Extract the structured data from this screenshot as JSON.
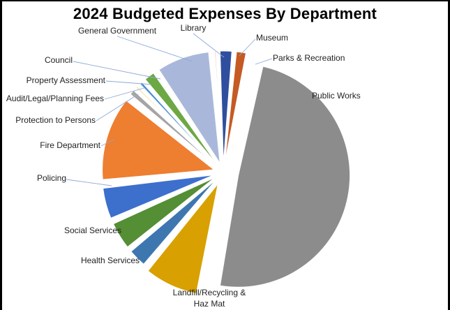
{
  "chart_data": {
    "type": "pie",
    "title": "2024 Budgeted Expenses By Department",
    "exploded": true,
    "slices": [
      {
        "label": "Library",
        "value": 0.6,
        "color": "#F4B9A0"
      },
      {
        "label": "Museum",
        "value": 2.0,
        "color": "#2F4F9E"
      },
      {
        "label": "Parks & Recreation",
        "value": 1.7,
        "color": "#C55A24"
      },
      {
        "label": "Public Works",
        "value": 45.5,
        "color": "#8C8C8C"
      },
      {
        "label": "Landfill/Recycling & Haz  Mat",
        "value": 7.5,
        "color": "#D8A000"
      },
      {
        "label": "Health Services",
        "value": 2.8,
        "color": "#3E77B0"
      },
      {
        "label": "Social Services",
        "value": 4.0,
        "color": "#548E35"
      },
      {
        "label": "Policing",
        "value": 4.5,
        "color": "#3D6FCC"
      },
      {
        "label": "Fire Department",
        "value": 11.5,
        "color": "#EE7E30"
      },
      {
        "label": "Protection to Persons",
        "value": 1.1,
        "color": "#A5A5A5"
      },
      {
        "label": "Audit/Legal/Planning Fees",
        "value": 0.6,
        "color": "#F2B520"
      },
      {
        "label": "Property Assessment",
        "value": 0.8,
        "color": "#4A8FD2"
      },
      {
        "label": "Council",
        "value": 1.8,
        "color": "#6CA843"
      },
      {
        "label": "General Government",
        "value": 7.4,
        "color": "#A9B8DA"
      }
    ]
  }
}
